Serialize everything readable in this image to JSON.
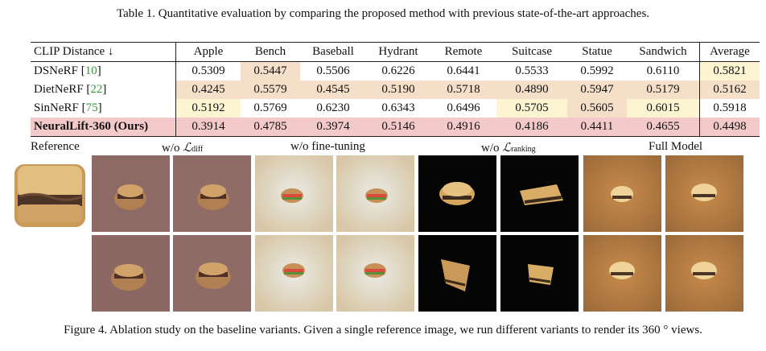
{
  "table": {
    "caption": "Table 1. Quantitative evaluation by comparing the proposed method with previous state-of-the-art approaches.",
    "headers": [
      "CLIP Distance ↓",
      "Apple",
      "Bench",
      "Baseball",
      "Hydrant",
      "Remote",
      "Suitcase",
      "Statue",
      "Sandwich",
      "Average"
    ],
    "rows": [
      {
        "name": "DSNeRF",
        "cite": "10",
        "values": [
          "0.5309",
          "0.5447",
          "0.5506",
          "0.6226",
          "0.6441",
          "0.5533",
          "0.5992",
          "0.6110",
          "0.5821"
        ]
      },
      {
        "name": "DietNeRF",
        "cite": "22",
        "values": [
          "0.4245",
          "0.5579",
          "0.4545",
          "0.5190",
          "0.5718",
          "0.4890",
          "0.5947",
          "0.5179",
          "0.5162"
        ]
      },
      {
        "name": "SinNeRF",
        "cite": "75",
        "values": [
          "0.5192",
          "0.5769",
          "0.6230",
          "0.6343",
          "0.6496",
          "0.5705",
          "0.5605",
          "0.6015",
          "0.5918"
        ]
      },
      {
        "name": "NeuralLift-360 (Ours)",
        "cite": "",
        "values": [
          "0.3914",
          "0.4785",
          "0.3974",
          "0.5146",
          "0.4916",
          "0.4186",
          "0.4411",
          "0.4655",
          "0.4498"
        ]
      }
    ]
  },
  "figure": {
    "labels": {
      "reference": "Reference",
      "wo_diff_prefix": "w/o ",
      "wo_diff_symbol": "ℒ",
      "wo_diff_sub": "diff",
      "wo_finetune": "w/o fine-tuning",
      "wo_rank_prefix": "w/o ",
      "wo_rank_symbol": "ℒ",
      "wo_rank_sub": "ranking",
      "full": "Full Model"
    },
    "caption": "Figure 4. Ablation study on the baseline variants. Given a single reference image, we run different variants to render its 360 ° views.",
    "colors": {
      "cell_yellow": "#fdf5d2",
      "cell_orange": "#f6dfc8",
      "cell_red": "#f4c9c9",
      "citation": "#2ca02c"
    }
  }
}
